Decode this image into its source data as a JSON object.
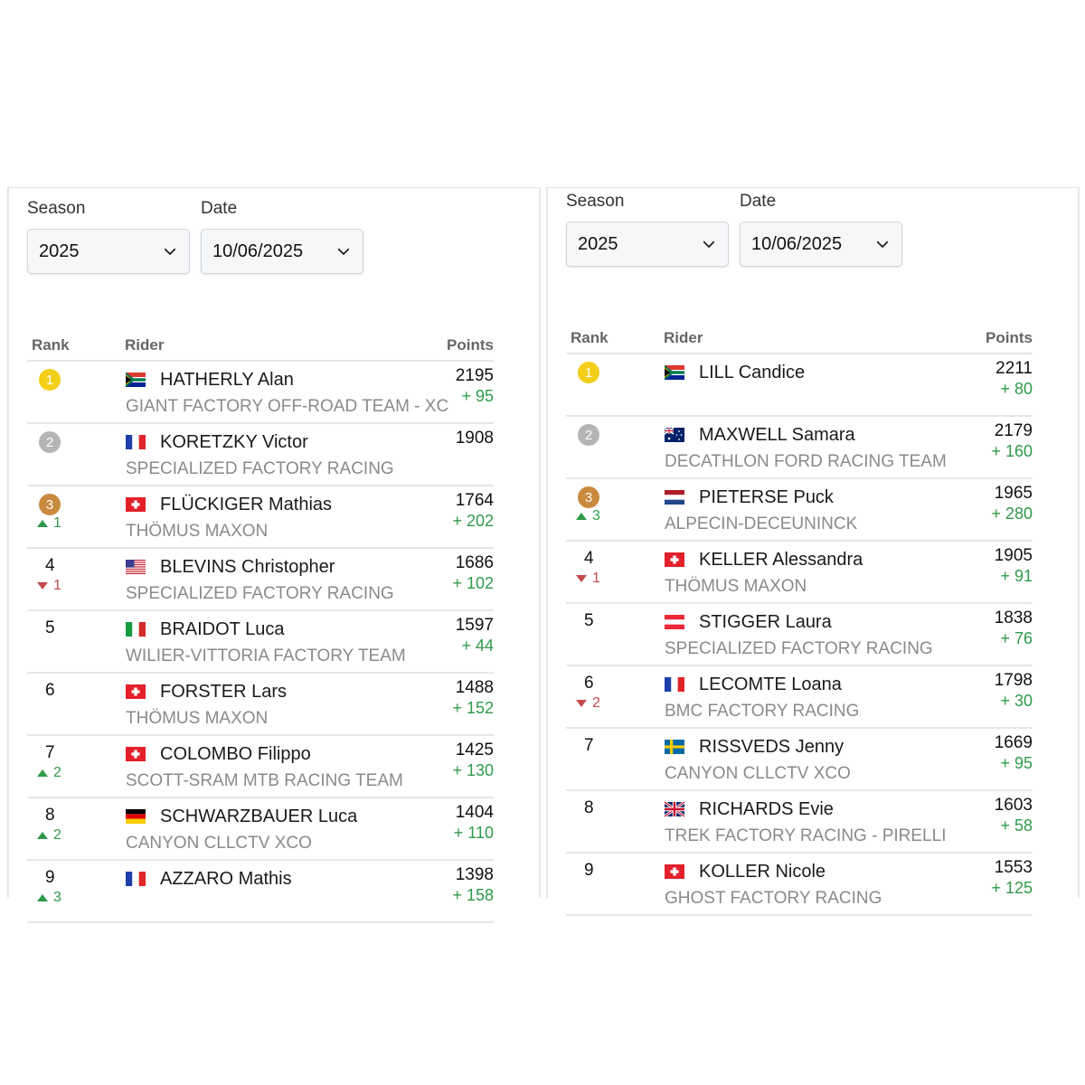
{
  "colors": {
    "gold": "#f3cf1a",
    "silver": "#b5b5b5",
    "bronze": "#c98a3e",
    "up": "#2f9a4a",
    "down": "#c64a4a"
  },
  "left": {
    "season_label": "Season",
    "date_label": "Date",
    "season_value": "2025",
    "date_value": "10/06/2025",
    "headers": {
      "rank": "Rank",
      "rider": "Rider",
      "points": "Points"
    },
    "rows": [
      {
        "rank": "1",
        "badge": "gold",
        "change_dir": "",
        "change": "",
        "flag": "ZA",
        "name": "HATHERLY Alan",
        "team": "GIANT FACTORY OFF-ROAD TEAM - XC",
        "points": "2195",
        "gain": "+ 95"
      },
      {
        "rank": "2",
        "badge": "silver",
        "change_dir": "",
        "change": "",
        "flag": "FR",
        "name": "KORETZKY Victor",
        "team": "SPECIALIZED FACTORY RACING",
        "points": "1908",
        "gain": ""
      },
      {
        "rank": "3",
        "badge": "bronze",
        "change_dir": "up",
        "change": "1",
        "flag": "CH",
        "name": "FLÜCKIGER Mathias",
        "team": "THÖMUS MAXON",
        "points": "1764",
        "gain": "+ 202"
      },
      {
        "rank": "4",
        "badge": "",
        "change_dir": "down",
        "change": "1",
        "flag": "US",
        "name": "BLEVINS Christopher",
        "team": "SPECIALIZED FACTORY RACING",
        "points": "1686",
        "gain": "+ 102"
      },
      {
        "rank": "5",
        "badge": "",
        "change_dir": "",
        "change": "",
        "flag": "IT",
        "name": "BRAIDOT Luca",
        "team": "WILIER-VITTORIA FACTORY TEAM",
        "points": "1597",
        "gain": "+ 44"
      },
      {
        "rank": "6",
        "badge": "",
        "change_dir": "",
        "change": "",
        "flag": "CH",
        "name": "FORSTER Lars",
        "team": "THÖMUS MAXON",
        "points": "1488",
        "gain": "+ 152"
      },
      {
        "rank": "7",
        "badge": "",
        "change_dir": "up",
        "change": "2",
        "flag": "CH",
        "name": "COLOMBO Filippo",
        "team": "SCOTT-SRAM MTB RACING TEAM",
        "points": "1425",
        "gain": "+ 130"
      },
      {
        "rank": "8",
        "badge": "",
        "change_dir": "up",
        "change": "2",
        "flag": "DE",
        "name": "SCHWARZBAUER Luca",
        "team": "CANYON CLLCTV XCO",
        "points": "1404",
        "gain": "+ 110"
      },
      {
        "rank": "9",
        "badge": "",
        "change_dir": "up",
        "change": "3",
        "flag": "FR",
        "name": "AZZARO Mathis",
        "team": "",
        "points": "1398",
        "gain": "+ 158"
      }
    ]
  },
  "right": {
    "season_label": "Season",
    "date_label": "Date",
    "season_value": "2025",
    "date_value": "10/06/2025",
    "headers": {
      "rank": "Rank",
      "rider": "Rider",
      "points": "Points"
    },
    "rows": [
      {
        "rank": "1",
        "badge": "gold",
        "change_dir": "",
        "change": "",
        "flag": "ZA",
        "name": "LILL Candice",
        "team": "",
        "points": "2211",
        "gain": "+ 80"
      },
      {
        "rank": "2",
        "badge": "silver",
        "change_dir": "",
        "change": "",
        "flag": "AU",
        "name": "MAXWELL Samara",
        "team": "DECATHLON FORD RACING TEAM",
        "points": "2179",
        "gain": "+ 160"
      },
      {
        "rank": "3",
        "badge": "bronze",
        "change_dir": "up",
        "change": "3",
        "flag": "NL",
        "name": "PIETERSE Puck",
        "team": "ALPECIN-DECEUNINCK",
        "points": "1965",
        "gain": "+ 280"
      },
      {
        "rank": "4",
        "badge": "",
        "change_dir": "down",
        "change": "1",
        "flag": "CH",
        "name": "KELLER Alessandra",
        "team": "THÖMUS MAXON",
        "points": "1905",
        "gain": "+ 91"
      },
      {
        "rank": "5",
        "badge": "",
        "change_dir": "",
        "change": "",
        "flag": "AT",
        "name": "STIGGER Laura",
        "team": "SPECIALIZED FACTORY RACING",
        "points": "1838",
        "gain": "+ 76"
      },
      {
        "rank": "6",
        "badge": "",
        "change_dir": "down",
        "change": "2",
        "flag": "FR",
        "name": "LECOMTE Loana",
        "team": "BMC FACTORY RACING",
        "points": "1798",
        "gain": "+ 30"
      },
      {
        "rank": "7",
        "badge": "",
        "change_dir": "",
        "change": "",
        "flag": "SE",
        "name": "RISSVEDS Jenny",
        "team": "CANYON CLLCTV XCO",
        "points": "1669",
        "gain": "+ 95"
      },
      {
        "rank": "8",
        "badge": "",
        "change_dir": "",
        "change": "",
        "flag": "GB",
        "name": "RICHARDS Evie",
        "team": "TREK FACTORY RACING - PIRELLI",
        "points": "1603",
        "gain": "+ 58"
      },
      {
        "rank": "9",
        "badge": "",
        "change_dir": "",
        "change": "",
        "flag": "CH",
        "name": "KOLLER Nicole",
        "team": "GHOST FACTORY RACING",
        "points": "1553",
        "gain": "+ 125"
      }
    ]
  }
}
